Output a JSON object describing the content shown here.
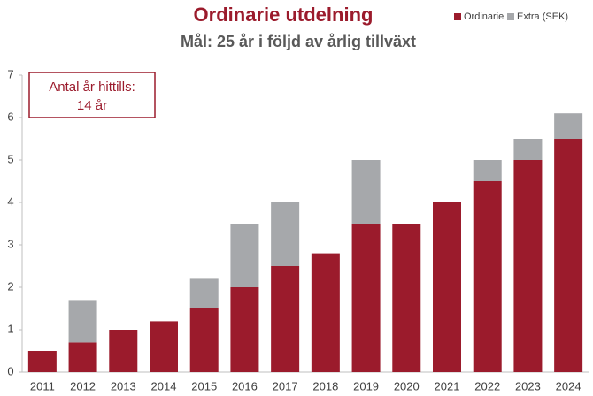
{
  "chart_data": {
    "type": "stacked_bar",
    "title": "Ordinarie utdelning",
    "subtitle": "Mål: 25 år i följd av årlig tillväxt",
    "annotation": [
      "Antal år hittills:",
      "14 år"
    ],
    "categories": [
      "2011",
      "2012",
      "2013",
      "2014",
      "2015",
      "2016",
      "2017",
      "2018",
      "2019",
      "2020",
      "2021",
      "2022",
      "2023",
      "2024"
    ],
    "series": [
      {
        "name": "Ordinarie",
        "color": "#9b1b2c",
        "values": [
          0.5,
          0.7,
          1.0,
          1.2,
          1.5,
          2.0,
          2.5,
          2.8,
          3.5,
          3.5,
          4.0,
          4.5,
          5.0,
          5.5
        ]
      },
      {
        "name": "Extra  (SEK)",
        "color": "#a6a8ab",
        "values": [
          0,
          1.0,
          0,
          0,
          0.7,
          1.5,
          1.5,
          0,
          1.5,
          0,
          0,
          0.5,
          0.5,
          0.6
        ]
      }
    ],
    "ylim": [
      0,
      7
    ],
    "yticks": [
      0,
      1,
      2,
      3,
      4,
      5,
      6,
      7
    ],
    "legend": "top-right",
    "grid": false
  }
}
